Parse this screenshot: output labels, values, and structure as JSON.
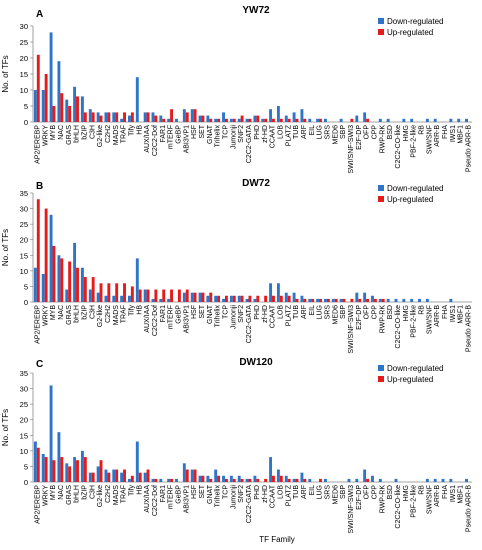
{
  "figure": {
    "xlabel": "TF Family",
    "colors": {
      "down": "#2e75c9",
      "up": "#e41b1b"
    }
  },
  "chart_data": [
    {
      "type": "bar",
      "panel_letter": "A",
      "title": "YW72",
      "ylabel": "No. of TFs",
      "ylim": [
        0,
        30
      ],
      "yticks": [
        0,
        5,
        10,
        15,
        20,
        25,
        30
      ],
      "legend": "top-right",
      "categories": [
        "AP2/EREBP",
        "WRKY",
        "MYB",
        "NAC",
        "GRAS",
        "bHLH",
        "bZIP",
        "C3H",
        "G2-like",
        "C2H2",
        "MADS",
        "TRAF",
        "Tify",
        "HB",
        "AUX/IAA",
        "C2C2-Dof",
        "FAR1",
        "mTERF",
        "GeBP",
        "ABI3VP1",
        "HSF",
        "SET",
        "GNAT",
        "Trihelix",
        "TCP",
        "Jumonji",
        "SNF2",
        "C2C2-GATA",
        "PHD",
        "zf-HD",
        "CCAAT",
        "LOB",
        "PLATZ",
        "TUB",
        "ARF",
        "EIL",
        "LUG",
        "SRS",
        "MED6",
        "SBP",
        "SWI/SNF-SWI3",
        "E2F-DP",
        "OFP",
        "CPP",
        "RWP-RK",
        "BSD",
        "C2C2-CO-like",
        "HMG",
        "PBF-2-like",
        "RB",
        "SWI/SNF",
        "ARR-B",
        "FHA",
        "IWS1",
        "MBF1",
        "Pseudo ARR-B"
      ],
      "series": [
        {
          "name": "Down-regulated",
          "values": [
            10,
            10,
            28,
            19,
            7,
            11,
            8,
            4,
            3,
            3,
            3,
            1,
            2,
            14,
            3,
            3,
            2,
            1,
            1,
            4,
            4,
            2,
            2,
            1,
            3,
            1,
            1,
            1,
            2,
            1,
            4,
            5,
            2,
            3,
            4,
            1,
            1,
            1,
            0,
            1,
            0,
            2,
            3,
            0,
            1,
            1,
            0,
            1,
            1,
            0,
            1,
            1,
            0,
            1,
            1,
            1
          ]
        },
        {
          "name": "Up-regulated",
          "values": [
            21,
            15,
            5,
            9,
            5,
            8,
            3,
            3,
            2,
            3,
            3,
            3,
            3,
            0,
            3,
            2,
            1,
            4,
            0,
            3,
            4,
            2,
            1,
            1,
            1,
            1,
            2,
            1,
            2,
            1,
            1,
            1,
            1,
            1,
            1,
            0,
            1,
            0,
            0,
            0,
            1,
            0,
            1,
            0,
            0,
            0,
            0,
            0,
            0,
            0,
            0,
            0,
            0,
            0,
            0,
            0
          ]
        }
      ]
    },
    {
      "type": "bar",
      "panel_letter": "B",
      "title": "DW72",
      "ylabel": "No. of TFs",
      "ylim": [
        0,
        35
      ],
      "yticks": [
        0,
        5,
        10,
        15,
        20,
        25,
        30,
        35
      ],
      "legend": "top-right",
      "categories": [
        "AP2/EREBP",
        "WRKY",
        "MYB",
        "NAC",
        "GRAS",
        "bHLH",
        "bZIP",
        "C3H",
        "G2-like",
        "C2H2",
        "MADS",
        "TRAF",
        "Tify",
        "HB",
        "AUX/IAA",
        "C2C2-Dof",
        "FAR1",
        "mTERF",
        "GeBP",
        "ABI3VP1",
        "HSF",
        "SET",
        "GNAT",
        "Trihelix",
        "TCP",
        "Jumonji",
        "SNF2",
        "C2C2-GATA",
        "PHD",
        "zf-HD",
        "CCAAT",
        "LOB",
        "PLATZ",
        "TUB",
        "ARF",
        "EIL",
        "LUG",
        "SRS",
        "MED6",
        "SBP",
        "SWI/SNF-SWI3",
        "E2F-DP",
        "OFP",
        "CPP",
        "RWP-RK",
        "BSD",
        "C2C2-CO-like",
        "HMG",
        "PBF-2-like",
        "RB",
        "SWI/SNF",
        "ARR-B",
        "FHA",
        "IWS1",
        "MBF1",
        "Pseudo ARR-B"
      ],
      "series": [
        {
          "name": "Down-regulated",
          "values": [
            11,
            9,
            28,
            15,
            4,
            19,
            11,
            4,
            3,
            2,
            2,
            2,
            2,
            14,
            4,
            1,
            1,
            1,
            0,
            3,
            3,
            3,
            2,
            2,
            1,
            2,
            2,
            1,
            1,
            0,
            6,
            6,
            3,
            3,
            2,
            1,
            1,
            1,
            1,
            1,
            0,
            3,
            3,
            2,
            1,
            1,
            1,
            1,
            1,
            1,
            1,
            0,
            0,
            1,
            0,
            0
          ]
        },
        {
          "name": "Up-regulated",
          "values": [
            33,
            30,
            18,
            14,
            13,
            11,
            8,
            8,
            6,
            6,
            6,
            6,
            5,
            4,
            4,
            4,
            4,
            4,
            4,
            4,
            3,
            3,
            3,
            2,
            2,
            2,
            2,
            2,
            2,
            2,
            2,
            2,
            2,
            1,
            1,
            1,
            1,
            1,
            1,
            1,
            1,
            1,
            1,
            1,
            1,
            0,
            0,
            0,
            0,
            0,
            0,
            0,
            0,
            0,
            0,
            0
          ]
        }
      ]
    },
    {
      "type": "bar",
      "panel_letter": "C",
      "title": "DW120",
      "ylabel": "No. of TFs",
      "ylim": [
        0,
        35
      ],
      "yticks": [
        0,
        5,
        10,
        15,
        20,
        25,
        30,
        35
      ],
      "legend": "top-right",
      "categories": [
        "AP2/EREBP",
        "WRKY",
        "MYB",
        "NAC",
        "GRAS",
        "bHLH",
        "bZIP",
        "C3H",
        "G2-like",
        "C2H2",
        "MADS",
        "TRAF",
        "Tify",
        "HB",
        "AUX/IAA",
        "C2C2-Dof",
        "FAR1",
        "mTERF",
        "GeBP",
        "ABI3VP1",
        "HSF",
        "SET",
        "GNAT",
        "Trihelix",
        "TCP",
        "Jumonji",
        "SNF2",
        "C2C2-GATA",
        "PHD",
        "zf-HD",
        "CCAAT",
        "LOB",
        "PLATZ",
        "TUB",
        "ARF",
        "EIL",
        "LUG",
        "SRS",
        "MED6",
        "SBP",
        "SWI/SNF-SWI3",
        "E2F-DP",
        "OFP",
        "CPP",
        "RWP-RK",
        "BSD",
        "C2C2-CO-like",
        "HMG",
        "PBF-2-like",
        "RB",
        "SWI/SNF",
        "ARR-B",
        "FHA",
        "IWS1",
        "MBF1",
        "Pseudo ARR-B"
      ],
      "series": [
        {
          "name": "Down-regulated",
          "values": [
            13,
            9,
            31,
            16,
            6,
            8,
            10,
            3,
            5,
            4,
            4,
            3,
            1,
            13,
            3,
            1,
            1,
            1,
            1,
            6,
            4,
            2,
            2,
            4,
            2,
            2,
            2,
            1,
            2,
            0,
            8,
            4,
            2,
            1,
            3,
            1,
            0,
            1,
            0,
            0,
            1,
            1,
            4,
            2,
            1,
            0,
            1,
            0,
            0,
            0,
            1,
            1,
            1,
            1,
            0,
            1
          ]
        },
        {
          "name": "Up-regulated",
          "values": [
            11,
            8,
            7,
            8,
            5,
            7,
            8,
            3,
            7,
            3,
            4,
            4,
            2,
            3,
            4,
            1,
            0,
            1,
            0,
            4,
            4,
            2,
            1,
            2,
            1,
            1,
            1,
            1,
            1,
            1,
            2,
            2,
            1,
            1,
            1,
            0,
            1,
            0,
            0,
            0,
            0,
            0,
            1,
            0,
            0,
            0,
            0,
            0,
            0,
            0,
            0,
            0,
            0,
            0,
            0,
            0
          ]
        }
      ]
    }
  ]
}
